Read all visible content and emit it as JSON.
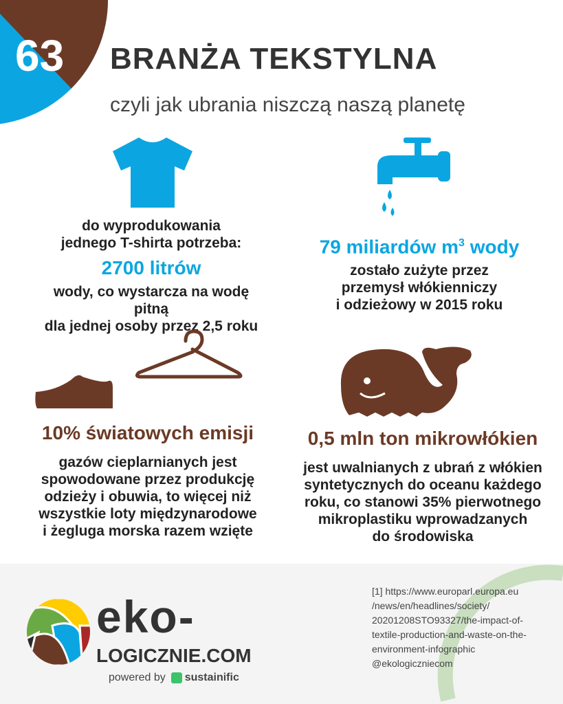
{
  "header": {
    "number": "63",
    "title": "BRANŻA TEKSTYLNA",
    "subtitle": "czyli jak ubrania niszczą naszą planetę"
  },
  "colors": {
    "blue": "#0ba6e1",
    "brown": "#6b3a26",
    "green": "#c9dfc0"
  },
  "facts": [
    {
      "icon": "t-shirt-icon",
      "lead": [
        "do wyprodukowania",
        "jednego T-shirta potrzeba:"
      ],
      "highlight": "2700 litrów",
      "text": [
        "wody, co wystarcza na wodę pitną",
        "dla jednej osoby przez 2,5 roku"
      ]
    },
    {
      "icon": "water-tap-icon",
      "highlight": "79 miliardów m",
      "sup": "3",
      "highlight_tail": " wody",
      "text": [
        "zostało zużyte przez",
        "przemysł włókienniczy",
        "i odzieżowy w 2015 roku"
      ]
    },
    {
      "icon": "hanger-shoe-icon",
      "highlight": "10% światowych emisji",
      "text": [
        "gazów cieplarnianych jest",
        "spowodowane przez produkcję",
        "odzieży i obuwia, to więcej niż",
        "wszystkie loty międzynarodowe",
        "i żegluga morska razem wzięte"
      ]
    },
    {
      "icon": "whale-icon",
      "highlight": "0,5 mln ton mikrowłókien",
      "text": [
        "jest uwalnianych z ubrań z włókien",
        "syntetycznych do oceanu każdego",
        "roku, co stanowi 35% pierwotnego",
        "mikroplastiku wprowadzanych",
        "do środowiska"
      ]
    }
  ],
  "footer": {
    "logo_line1": "eko-",
    "logo_line2": "LOGICZNIE.COM",
    "powered_by": "powered by",
    "partner": "sustainific",
    "reference": [
      "[1] https://www.europarl.europa.eu",
      "/news/en/headlines/society/",
      "20201208STO93327/the-impact-of-",
      "textile-production-and-waste-on-the-",
      "environment-infographic",
      "@ekologiczniecom"
    ]
  }
}
